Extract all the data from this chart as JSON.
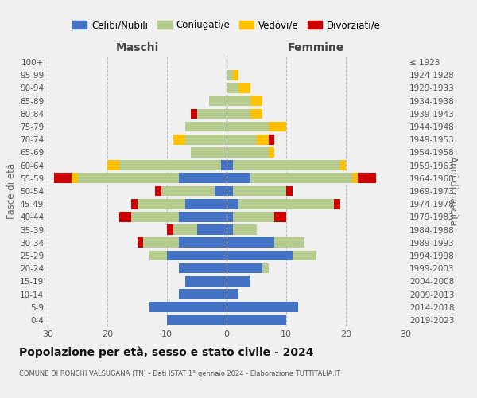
{
  "age_groups": [
    "0-4",
    "5-9",
    "10-14",
    "15-19",
    "20-24",
    "25-29",
    "30-34",
    "35-39",
    "40-44",
    "45-49",
    "50-54",
    "55-59",
    "60-64",
    "65-69",
    "70-74",
    "75-79",
    "80-84",
    "85-89",
    "90-94",
    "95-99",
    "100+"
  ],
  "birth_years": [
    "2019-2023",
    "2014-2018",
    "2009-2013",
    "2004-2008",
    "1999-2003",
    "1994-1998",
    "1989-1993",
    "1984-1988",
    "1979-1983",
    "1974-1978",
    "1969-1973",
    "1964-1968",
    "1959-1963",
    "1954-1958",
    "1949-1953",
    "1944-1948",
    "1939-1943",
    "1934-1938",
    "1929-1933",
    "1924-1928",
    "≤ 1923"
  ],
  "males": {
    "celibi": [
      10,
      13,
      8,
      7,
      8,
      10,
      8,
      5,
      8,
      7,
      2,
      8,
      1,
      0,
      0,
      0,
      0,
      0,
      0,
      0,
      0
    ],
    "coniugati": [
      0,
      0,
      0,
      0,
      0,
      3,
      6,
      4,
      8,
      8,
      9,
      17,
      17,
      6,
      7,
      7,
      5,
      3,
      0,
      0,
      0
    ],
    "vedovi": [
      0,
      0,
      0,
      0,
      0,
      0,
      0,
      0,
      0,
      0,
      0,
      1,
      2,
      0,
      2,
      0,
      0,
      0,
      0,
      0,
      0
    ],
    "divorziati": [
      0,
      0,
      0,
      0,
      0,
      0,
      1,
      1,
      2,
      1,
      1,
      3,
      0,
      0,
      0,
      0,
      1,
      0,
      0,
      0,
      0
    ]
  },
  "females": {
    "nubili": [
      10,
      12,
      2,
      4,
      6,
      11,
      8,
      1,
      1,
      2,
      1,
      4,
      1,
      0,
      0,
      0,
      0,
      0,
      0,
      0,
      0
    ],
    "coniugate": [
      0,
      0,
      0,
      0,
      1,
      4,
      5,
      4,
      7,
      16,
      9,
      17,
      18,
      7,
      5,
      7,
      4,
      4,
      2,
      1,
      0
    ],
    "vedove": [
      0,
      0,
      0,
      0,
      0,
      0,
      0,
      0,
      0,
      0,
      0,
      1,
      1,
      1,
      2,
      3,
      2,
      2,
      2,
      1,
      0
    ],
    "divorziate": [
      0,
      0,
      0,
      0,
      0,
      0,
      0,
      0,
      2,
      1,
      1,
      3,
      0,
      0,
      1,
      0,
      0,
      0,
      0,
      0,
      0
    ]
  },
  "colors": {
    "celibi": "#4472c4",
    "coniugati": "#b5cc8e",
    "vedovi": "#ffc000",
    "divorziati": "#cc0000"
  },
  "xlim": 30,
  "title": "Popolazione per età, sesso e stato civile - 2024",
  "subtitle": "COMUNE DI RONCHI VALSUGANA (TN) - Dati ISTAT 1° gennaio 2024 - Elaborazione TUTTITALIA.IT",
  "ylabel_left": "Fasce di età",
  "ylabel_right": "Anni di nascita",
  "legend_labels": [
    "Celibi/Nubili",
    "Coniugati/e",
    "Vedovi/e",
    "Divorziati/e"
  ],
  "background_color": "#f0f0f0"
}
